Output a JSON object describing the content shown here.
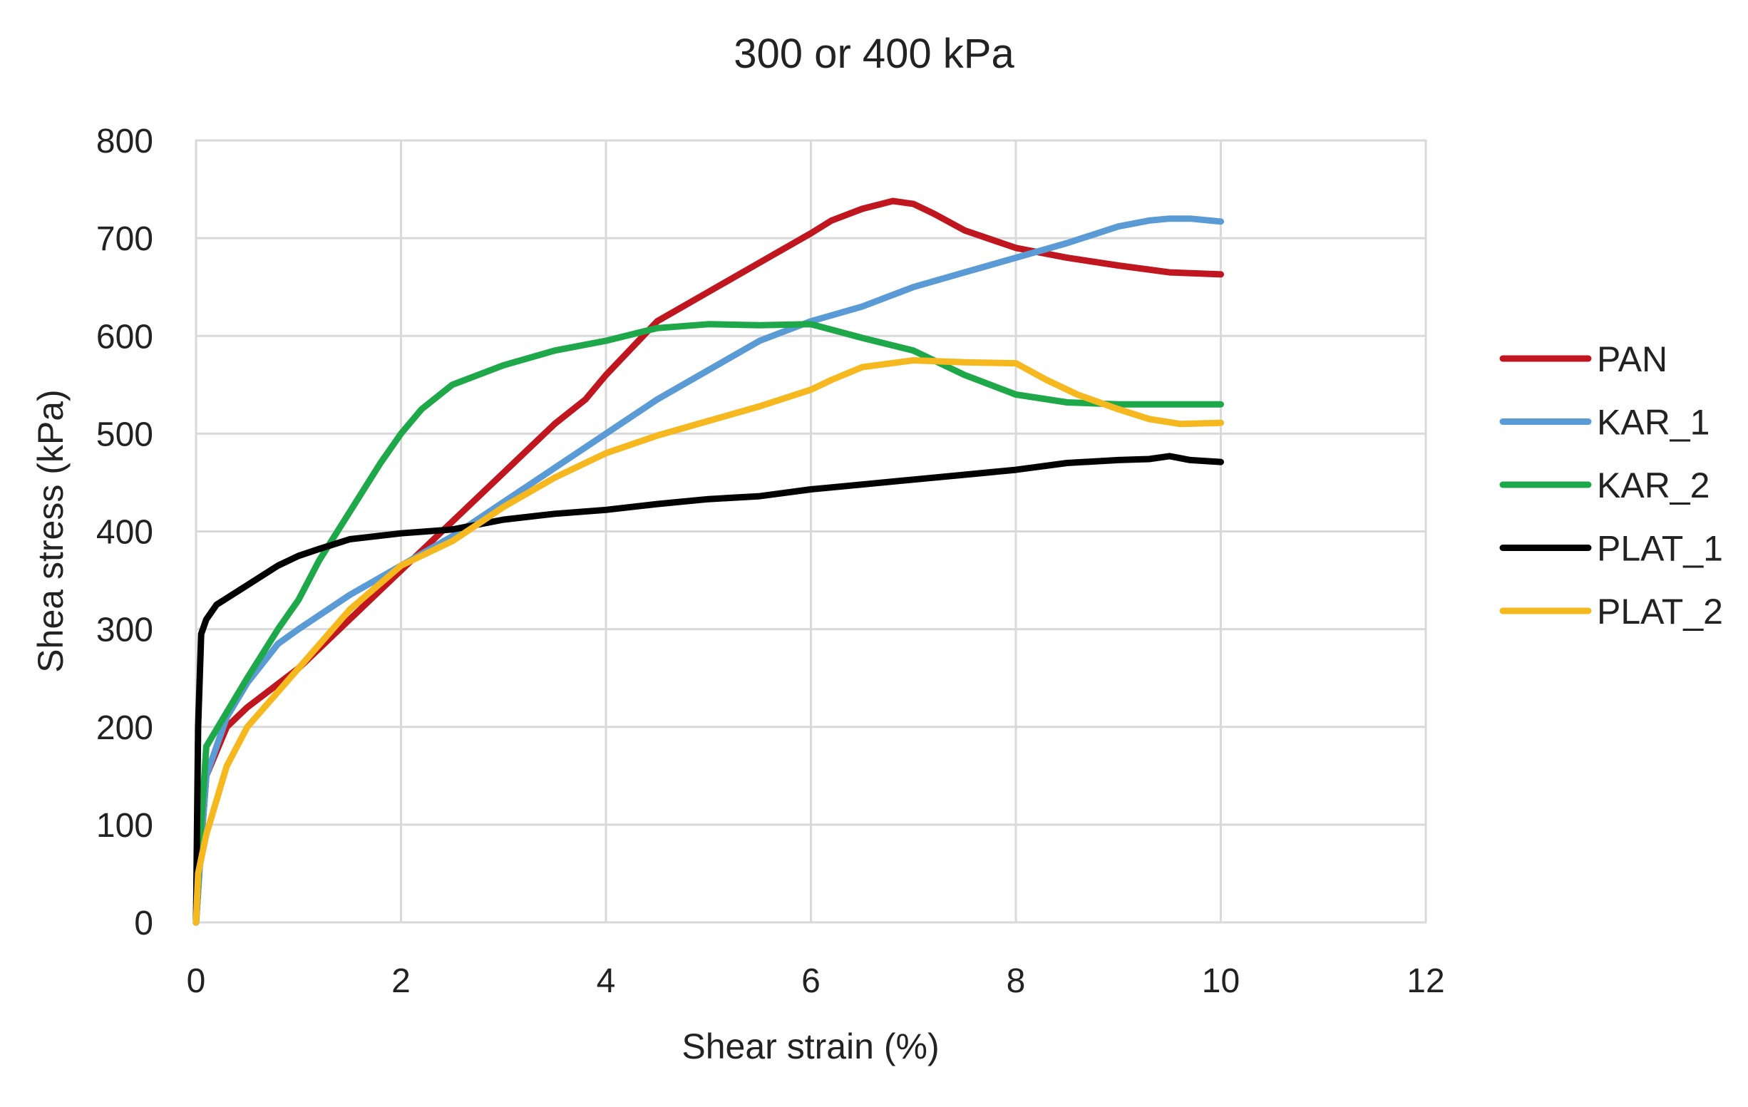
{
  "chart_data": {
    "type": "line",
    "title": "300 or 400 kPa",
    "xlabel": "Shear strain (%)",
    "ylabel": "Shea stress (kPa)",
    "xlim": [
      0,
      12
    ],
    "ylim": [
      0,
      800
    ],
    "xticks": [
      0,
      2,
      4,
      6,
      8,
      10,
      12
    ],
    "yticks": [
      0,
      100,
      200,
      300,
      400,
      500,
      600,
      700,
      800
    ],
    "xtick_labels": [
      "0",
      "2",
      "4",
      "6",
      "8",
      "10",
      "12"
    ],
    "ytick_labels": [
      "0",
      "100",
      "200",
      "300",
      "400",
      "500",
      "600",
      "700",
      "800"
    ],
    "grid": true,
    "legend_position": "right",
    "series": [
      {
        "name": "PAN",
        "color": "#c0161f",
        "points": [
          [
            0,
            0
          ],
          [
            0.05,
            80
          ],
          [
            0.1,
            150
          ],
          [
            0.3,
            200
          ],
          [
            0.5,
            220
          ],
          [
            1.0,
            260
          ],
          [
            1.5,
            310
          ],
          [
            2.0,
            360
          ],
          [
            2.5,
            410
          ],
          [
            3.0,
            460
          ],
          [
            3.5,
            510
          ],
          [
            3.8,
            535
          ],
          [
            4.0,
            560
          ],
          [
            4.5,
            615
          ],
          [
            5.0,
            645
          ],
          [
            5.5,
            675
          ],
          [
            6.0,
            705
          ],
          [
            6.2,
            718
          ],
          [
            6.5,
            730
          ],
          [
            6.8,
            738
          ],
          [
            7.0,
            735
          ],
          [
            7.2,
            725
          ],
          [
            7.5,
            708
          ],
          [
            8.0,
            690
          ],
          [
            8.5,
            680
          ],
          [
            9.0,
            672
          ],
          [
            9.5,
            665
          ],
          [
            10.0,
            663
          ]
        ]
      },
      {
        "name": "KAR_1",
        "color": "#5b9bd5",
        "points": [
          [
            0,
            0
          ],
          [
            0.05,
            80
          ],
          [
            0.1,
            150
          ],
          [
            0.3,
            210
          ],
          [
            0.5,
            245
          ],
          [
            0.8,
            285
          ],
          [
            1.0,
            300
          ],
          [
            1.5,
            335
          ],
          [
            2.0,
            365
          ],
          [
            2.5,
            395
          ],
          [
            3.0,
            430
          ],
          [
            3.5,
            465
          ],
          [
            4.0,
            500
          ],
          [
            4.5,
            535
          ],
          [
            5.0,
            565
          ],
          [
            5.5,
            595
          ],
          [
            6.0,
            615
          ],
          [
            6.5,
            630
          ],
          [
            7.0,
            650
          ],
          [
            7.5,
            665
          ],
          [
            8.0,
            680
          ],
          [
            8.5,
            695
          ],
          [
            9.0,
            712
          ],
          [
            9.3,
            718
          ],
          [
            9.5,
            720
          ],
          [
            9.7,
            720
          ],
          [
            10.0,
            717
          ]
        ]
      },
      {
        "name": "KAR_2",
        "color": "#1fa84a",
        "points": [
          [
            0,
            0
          ],
          [
            0.05,
            100
          ],
          [
            0.1,
            180
          ],
          [
            0.3,
            215
          ],
          [
            0.5,
            250
          ],
          [
            0.8,
            300
          ],
          [
            1.0,
            330
          ],
          [
            1.2,
            370
          ],
          [
            1.5,
            420
          ],
          [
            1.8,
            470
          ],
          [
            2.0,
            500
          ],
          [
            2.2,
            525
          ],
          [
            2.5,
            550
          ],
          [
            3.0,
            570
          ],
          [
            3.5,
            585
          ],
          [
            4.0,
            595
          ],
          [
            4.5,
            608
          ],
          [
            5.0,
            612
          ],
          [
            5.5,
            611
          ],
          [
            6.0,
            612
          ],
          [
            6.5,
            598
          ],
          [
            7.0,
            585
          ],
          [
            7.5,
            560
          ],
          [
            8.0,
            540
          ],
          [
            8.5,
            532
          ],
          [
            9.0,
            530
          ],
          [
            9.5,
            530
          ],
          [
            10.0,
            530
          ]
        ]
      },
      {
        "name": "PLAT_1",
        "color": "#000000",
        "points": [
          [
            0,
            0
          ],
          [
            0.01,
            100
          ],
          [
            0.02,
            200
          ],
          [
            0.05,
            295
          ],
          [
            0.1,
            310
          ],
          [
            0.2,
            325
          ],
          [
            0.5,
            345
          ],
          [
            0.8,
            365
          ],
          [
            1.0,
            375
          ],
          [
            1.2,
            382
          ],
          [
            1.5,
            392
          ],
          [
            2.0,
            398
          ],
          [
            2.5,
            402
          ],
          [
            3.0,
            412
          ],
          [
            3.5,
            418
          ],
          [
            4.0,
            422
          ],
          [
            4.5,
            428
          ],
          [
            5.0,
            433
          ],
          [
            5.5,
            436
          ],
          [
            6.0,
            443
          ],
          [
            6.5,
            448
          ],
          [
            7.0,
            453
          ],
          [
            7.5,
            458
          ],
          [
            8.0,
            463
          ],
          [
            8.5,
            470
          ],
          [
            9.0,
            473
          ],
          [
            9.3,
            474
          ],
          [
            9.5,
            477
          ],
          [
            9.7,
            473
          ],
          [
            10.0,
            471
          ]
        ]
      },
      {
        "name": "PLAT_2",
        "color": "#f5b81e",
        "points": [
          [
            0,
            0
          ],
          [
            0.02,
            50
          ],
          [
            0.1,
            90
          ],
          [
            0.3,
            160
          ],
          [
            0.5,
            200
          ],
          [
            1.0,
            260
          ],
          [
            1.5,
            320
          ],
          [
            2.0,
            365
          ],
          [
            2.5,
            390
          ],
          [
            3.0,
            425
          ],
          [
            3.5,
            455
          ],
          [
            4.0,
            480
          ],
          [
            4.5,
            498
          ],
          [
            5.0,
            513
          ],
          [
            5.5,
            528
          ],
          [
            6.0,
            545
          ],
          [
            6.2,
            555
          ],
          [
            6.5,
            568
          ],
          [
            7.0,
            575
          ],
          [
            7.5,
            573
          ],
          [
            8.0,
            572
          ],
          [
            8.3,
            555
          ],
          [
            8.6,
            540
          ],
          [
            9.0,
            525
          ],
          [
            9.3,
            515
          ],
          [
            9.6,
            510
          ],
          [
            10.0,
            511
          ]
        ]
      }
    ]
  }
}
